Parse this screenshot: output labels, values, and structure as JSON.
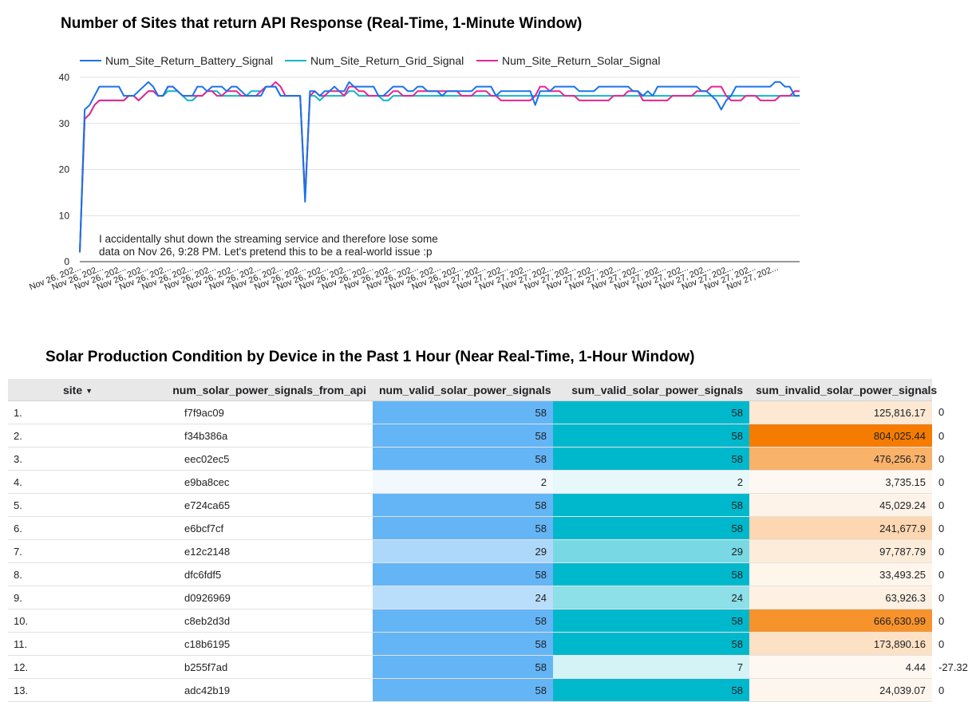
{
  "chart_title": "Number of Sites that return API Response (Real-Time, 1-Minute Window)",
  "table_title": "Solar Production Condition by Device in the Past 1 Hour (Near Real-Time, 1-Hour Window)",
  "chart_data": {
    "type": "line",
    "title": "Number of Sites that return API Response (Real-Time, 1-Minute Window)",
    "xlabel": "",
    "ylabel": "",
    "ylim": [
      0,
      40
    ],
    "yticks": [
      0,
      10,
      20,
      30,
      40
    ],
    "grid": true,
    "legend_position": "top",
    "x_tick_labels": [
      "Nov 26, 202...",
      "Nov 26, 202...",
      "Nov 26, 202...",
      "Nov 26, 202...",
      "Nov 26, 202...",
      "Nov 26, 202...",
      "Nov 26, 202...",
      "Nov 26, 202...",
      "Nov 26, 202...",
      "Nov 26, 202...",
      "Nov 26, 202...",
      "Nov 26, 202...",
      "Nov 26, 202...",
      "Nov 26, 202...",
      "Nov 26, 202...",
      "Nov 26, 202...",
      "Nov 26, 202...",
      "Nov 26, 202...",
      "Nov 27, 202...",
      "Nov 27, 202...",
      "Nov 27, 202...",
      "Nov 27, 202...",
      "Nov 27, 202...",
      "Nov 27, 202...",
      "Nov 27, 202...",
      "Nov 27, 202...",
      "Nov 27, 202...",
      "Nov 27, 202...",
      "Nov 27, 202...",
      "Nov 27, 202...",
      "Nov 27, 202...",
      "Nov 27, 202..."
    ],
    "series": [
      {
        "name": "Num_Site_Return_Battery_Signal",
        "color": "#1a73e8",
        "values": [
          2,
          33,
          34,
          36,
          38,
          38,
          38,
          38,
          38,
          36,
          36,
          36,
          37,
          38,
          39,
          38,
          36,
          36,
          38,
          38,
          37,
          36,
          36,
          36,
          38,
          38,
          37,
          38,
          38,
          38,
          37,
          38,
          38,
          37,
          36,
          36,
          36,
          36,
          38,
          38,
          38,
          36,
          36,
          36,
          36,
          36,
          13,
          37,
          37,
          36,
          37,
          37,
          38,
          37,
          37,
          39,
          38,
          38,
          38,
          38,
          38,
          36,
          36,
          37,
          38,
          38,
          38,
          37,
          37,
          38,
          38,
          37,
          37,
          37,
          36,
          37,
          37,
          37,
          37,
          37,
          37,
          38,
          38,
          38,
          38,
          36,
          37,
          37,
          37,
          37,
          37,
          37,
          37,
          34,
          37,
          37,
          37,
          38,
          38,
          38,
          38,
          38,
          37,
          37,
          37,
          37,
          38,
          38,
          38,
          38,
          38,
          38,
          38,
          37,
          37,
          36,
          37,
          36,
          38,
          38,
          38,
          38,
          38,
          38,
          38,
          38,
          38,
          37,
          37,
          36,
          35,
          33,
          35,
          36,
          38,
          38,
          38,
          38,
          38,
          38,
          38,
          38,
          39,
          39,
          38,
          38,
          36,
          36
        ]
      },
      {
        "name": "Num_Site_Return_Grid_Signal",
        "color": "#12b5cb",
        "values": [
          2,
          31,
          32,
          34,
          35,
          35,
          35,
          35,
          35,
          35,
          36,
          36,
          35,
          36,
          37,
          37,
          36,
          36,
          37,
          37,
          37,
          36,
          35,
          35,
          36,
          36,
          37,
          37,
          37,
          36,
          36,
          36,
          36,
          36,
          36,
          37,
          37,
          37,
          38,
          38,
          38,
          36,
          36,
          36,
          36,
          36,
          14,
          36,
          36,
          35,
          36,
          36,
          36,
          36,
          36,
          37,
          37,
          36,
          36,
          36,
          36,
          36,
          35,
          35,
          36,
          36,
          36,
          36,
          36,
          36,
          36,
          36,
          36,
          36,
          36,
          36,
          36,
          36,
          36,
          36,
          36,
          36,
          36,
          36,
          36,
          36,
          36,
          36,
          36,
          36,
          36,
          36,
          36,
          36,
          36,
          36,
          36,
          36,
          36,
          36,
          36,
          36,
          36,
          36,
          36,
          36,
          36,
          36,
          36,
          36,
          36,
          36,
          36,
          36,
          36,
          36,
          36,
          36,
          36,
          36,
          36,
          36,
          36,
          36,
          36,
          36,
          36,
          36,
          36,
          36,
          36,
          36,
          36,
          36,
          36,
          36,
          36,
          36,
          36,
          36,
          36,
          36,
          36,
          36,
          36,
          36,
          36,
          36
        ]
      },
      {
        "name": "Num_Site_Return_Solar_Signal",
        "color": "#e52592",
        "values": [
          2,
          31,
          32,
          34,
          35,
          35,
          35,
          35,
          35,
          35,
          36,
          36,
          35,
          36,
          37,
          37,
          36,
          36,
          38,
          38,
          37,
          36,
          36,
          36,
          36,
          36,
          37,
          37,
          36,
          36,
          37,
          37,
          37,
          36,
          36,
          36,
          36,
          37,
          38,
          38,
          39,
          38,
          36,
          36,
          36,
          36,
          14,
          36,
          37,
          36,
          36,
          37,
          37,
          37,
          36,
          38,
          38,
          37,
          37,
          36,
          36,
          36,
          36,
          36,
          37,
          37,
          36,
          36,
          36,
          37,
          37,
          37,
          37,
          37,
          37,
          37,
          37,
          37,
          36,
          36,
          36,
          37,
          37,
          37,
          36,
          36,
          35,
          35,
          35,
          35,
          35,
          35,
          35,
          36,
          38,
          38,
          37,
          37,
          37,
          36,
          36,
          36,
          35,
          35,
          35,
          35,
          35,
          35,
          35,
          36,
          36,
          36,
          37,
          37,
          37,
          35,
          35,
          35,
          35,
          35,
          35,
          36,
          36,
          36,
          36,
          36,
          37,
          37,
          37,
          38,
          38,
          38,
          36,
          35,
          35,
          35,
          36,
          36,
          36,
          35,
          35,
          35,
          35,
          36,
          36,
          36,
          37,
          37
        ]
      }
    ],
    "annotation": [
      "I accidentally shut down the streaming service and therefore lose some",
      "data on Nov 26, 9:28 PM. Let's pretend this to be a real-world issue  :p"
    ]
  },
  "table": {
    "columns": [
      "site",
      "num_solar_power_signals_from_api",
      "num_valid_solar_power_signals",
      "sum_valid_solar_power_signals",
      "sum_invalid_solar_power_signals"
    ],
    "sort_icon": "sort-desc-icon",
    "column_colors": [
      "#64b5f6",
      "#00b8cc",
      "#f57c00",
      "#c5cae9"
    ],
    "rows": [
      {
        "idx": "1.",
        "site": "f7f9ac09",
        "num_api": "58",
        "num_valid": "58",
        "sum_valid": "125,816.17",
        "sum_invalid": "0"
      },
      {
        "idx": "2.",
        "site": "f34b386a",
        "num_api": "58",
        "num_valid": "58",
        "sum_valid": "804,025.44",
        "sum_invalid": "0"
      },
      {
        "idx": "3.",
        "site": "eec02ec5",
        "num_api": "58",
        "num_valid": "58",
        "sum_valid": "476,256.73",
        "sum_invalid": "0"
      },
      {
        "idx": "4.",
        "site": "e9ba8cec",
        "num_api": "2",
        "num_valid": "2",
        "sum_valid": "3,735.15",
        "sum_invalid": "0"
      },
      {
        "idx": "5.",
        "site": "e724ca65",
        "num_api": "58",
        "num_valid": "58",
        "sum_valid": "45,029.24",
        "sum_invalid": "0"
      },
      {
        "idx": "6.",
        "site": "e6bcf7cf",
        "num_api": "58",
        "num_valid": "58",
        "sum_valid": "241,677.9",
        "sum_invalid": "0"
      },
      {
        "idx": "7.",
        "site": "e12c2148",
        "num_api": "29",
        "num_valid": "29",
        "sum_valid": "97,787.79",
        "sum_invalid": "0"
      },
      {
        "idx": "8.",
        "site": "dfc6fdf5",
        "num_api": "58",
        "num_valid": "58",
        "sum_valid": "33,493.25",
        "sum_invalid": "0"
      },
      {
        "idx": "9.",
        "site": "d0926969",
        "num_api": "24",
        "num_valid": "24",
        "sum_valid": "63,926.3",
        "sum_invalid": "0"
      },
      {
        "idx": "10.",
        "site": "c8eb2d3d",
        "num_api": "58",
        "num_valid": "58",
        "sum_valid": "666,630.99",
        "sum_invalid": "0"
      },
      {
        "idx": "11.",
        "site": "c18b6195",
        "num_api": "58",
        "num_valid": "58",
        "sum_valid": "173,890.16",
        "sum_invalid": "0"
      },
      {
        "idx": "12.",
        "site": "b255f7ad",
        "num_api": "58",
        "num_valid": "7",
        "sum_valid": "4.44",
        "sum_invalid": "-27.32"
      },
      {
        "idx": "13.",
        "site": "adc42b19",
        "num_api": "58",
        "num_valid": "58",
        "sum_valid": "24,039.07",
        "sum_invalid": "0"
      }
    ]
  }
}
